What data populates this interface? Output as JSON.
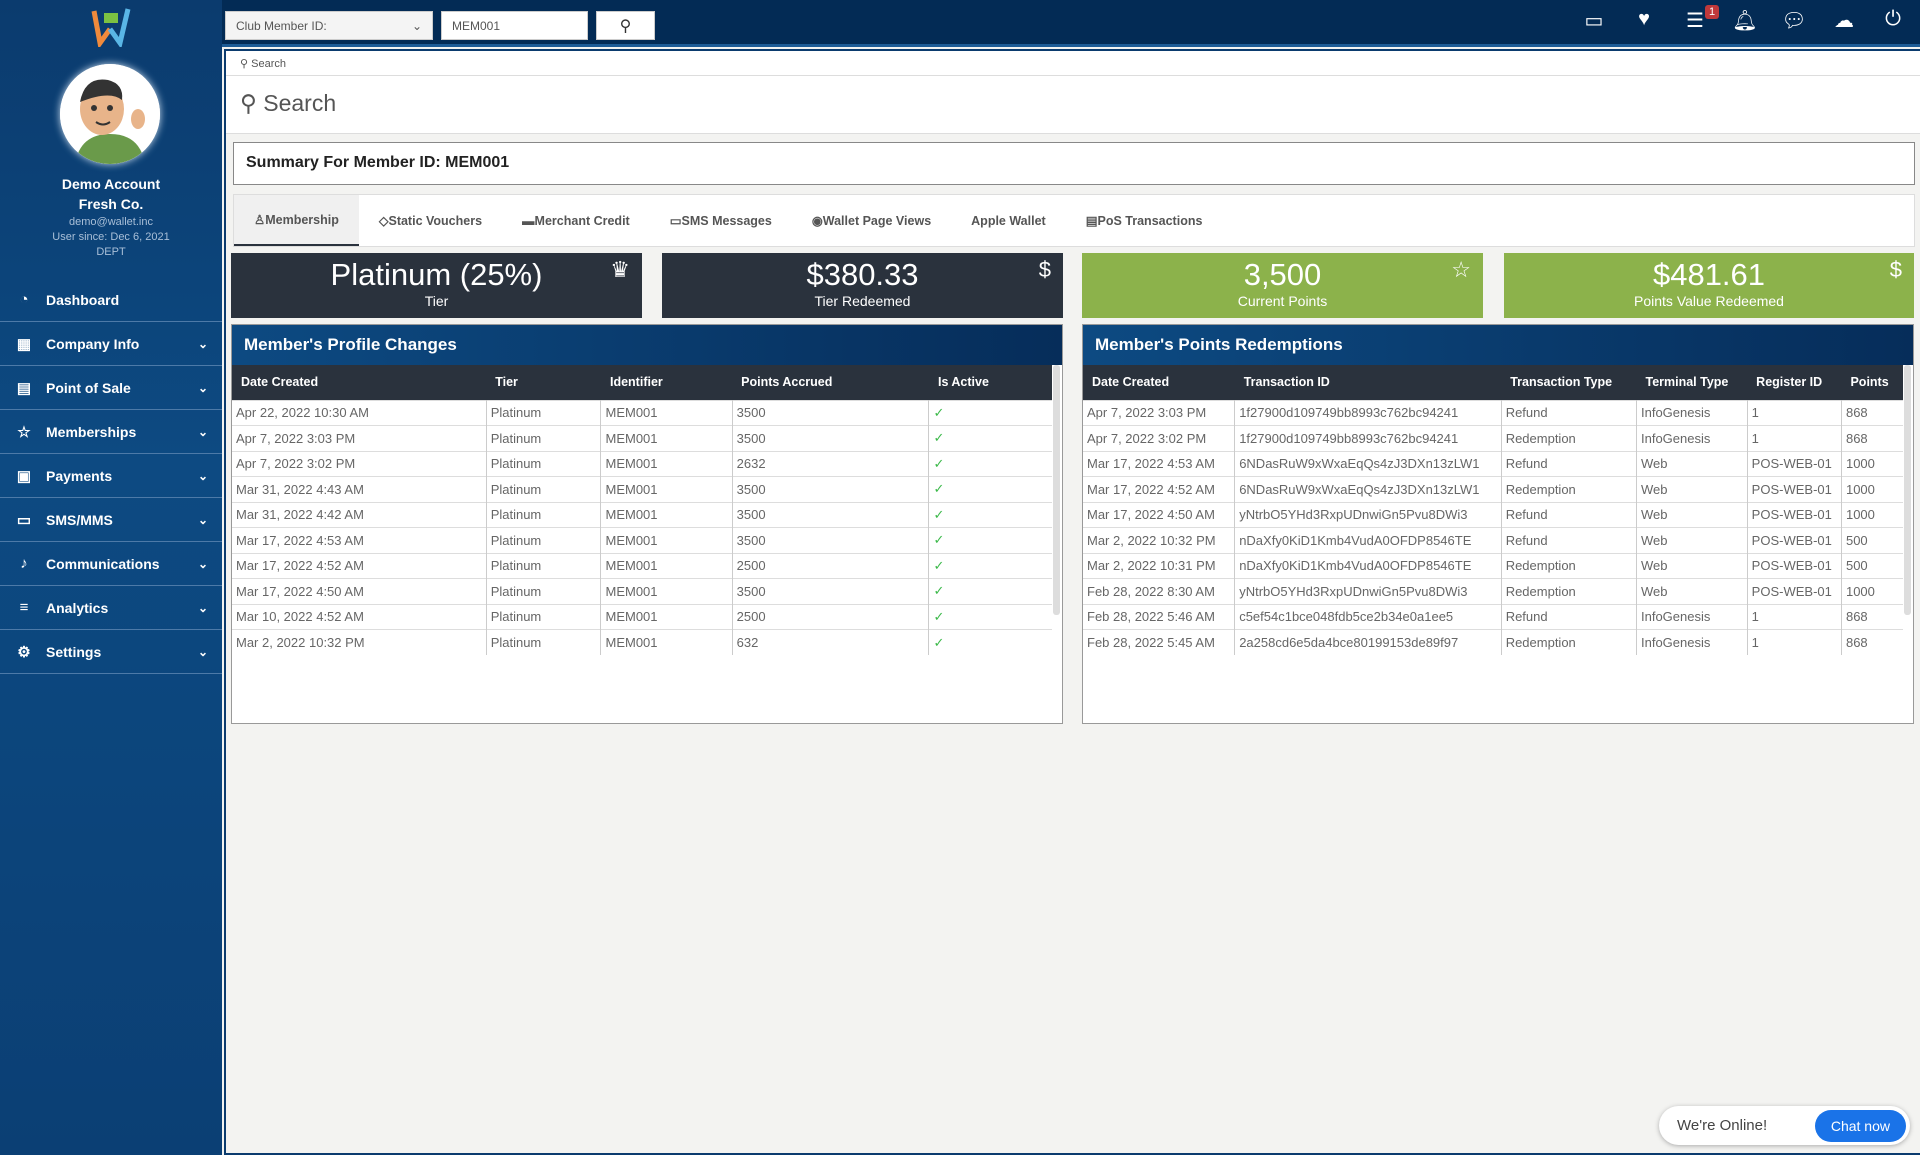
{
  "user": {
    "name": "Demo Account",
    "company": "Fresh Co.",
    "email": "demo@wallet.inc",
    "since": "User since: Dec 6, 2021",
    "dept": "DEPT"
  },
  "nav": [
    {
      "label": "Dashboard",
      "icon": "dashboard-icon",
      "g": "◔"
    },
    {
      "label": "Company Info",
      "icon": "building-icon",
      "g": "▦"
    },
    {
      "label": "Point of Sale",
      "icon": "register-icon",
      "g": "▤"
    },
    {
      "label": "Memberships",
      "icon": "star-icon",
      "g": "☆"
    },
    {
      "label": "Payments",
      "icon": "money-icon",
      "g": "▣"
    },
    {
      "label": "SMS/MMS",
      "icon": "chat-icon",
      "g": "▭"
    },
    {
      "label": "Communications",
      "icon": "microphone-icon",
      "g": "♪"
    },
    {
      "label": "Analytics",
      "icon": "chart-icon",
      "g": "≡"
    },
    {
      "label": "Settings",
      "icon": "users-gear-icon",
      "g": "⚙"
    }
  ],
  "topbar": {
    "select_value": "Club Member ID:",
    "search_value": "MEM001",
    "notification_count": "1",
    "icons": [
      "video-icon",
      "donate-icon",
      "tasks-icon",
      "bell-icon",
      "comments-icon",
      "cloud-download-icon",
      "power-icon"
    ]
  },
  "main": {
    "small_search": "Search",
    "title": "Search",
    "summary": "Summary For Member ID: MEM001",
    "tabs": [
      {
        "label": "Membership",
        "icon": "user-icon",
        "g": "♙"
      },
      {
        "label": "Static Vouchers",
        "icon": "tag-icon",
        "g": "◇"
      },
      {
        "label": "Merchant Credit",
        "icon": "credit-card-icon",
        "g": "▬"
      },
      {
        "label": "SMS Messages",
        "icon": "message-icon",
        "g": "▭"
      },
      {
        "label": "Wallet Page Views",
        "icon": "eye-icon",
        "g": "◉"
      },
      {
        "label": "Apple Wallet",
        "icon": "apple-icon",
        "g": ""
      },
      {
        "label": "PoS Transactions",
        "icon": "printer-icon",
        "g": "▤"
      }
    ],
    "cards": [
      {
        "value": "Platinum (25%)",
        "label": "Tier",
        "icon": "crown-icon",
        "g": "♛",
        "color": "#2a323d"
      },
      {
        "value": "$380.33",
        "label": "Tier Redeemed",
        "icon": "dollar-icon",
        "g": "$",
        "color": "#2a323d"
      },
      {
        "value": "3,500",
        "label": "Current Points",
        "icon": "star-icon",
        "g": "☆",
        "color": "#8cb24b"
      },
      {
        "value": "$481.61",
        "label": "Points Value Redeemed",
        "icon": "dollar-icon",
        "g": "$",
        "color": "#8cb24b"
      }
    ]
  },
  "profile": {
    "title": "Member's Profile Changes",
    "columns": [
      "Date Created",
      "Tier",
      "Identifier",
      "Points Accrued",
      "Is Active"
    ],
    "rows": [
      [
        "Apr 22, 2022 10:30 AM",
        "Platinum",
        "MEM001",
        "3500",
        "✓"
      ],
      [
        "Apr 7, 2022 3:03 PM",
        "Platinum",
        "MEM001",
        "3500",
        "✓"
      ],
      [
        "Apr 7, 2022 3:02 PM",
        "Platinum",
        "MEM001",
        "2632",
        "✓"
      ],
      [
        "Mar 31, 2022 4:43 AM",
        "Platinum",
        "MEM001",
        "3500",
        "✓"
      ],
      [
        "Mar 31, 2022 4:42 AM",
        "Platinum",
        "MEM001",
        "3500",
        "✓"
      ],
      [
        "Mar 17, 2022 4:53 AM",
        "Platinum",
        "MEM001",
        "3500",
        "✓"
      ],
      [
        "Mar 17, 2022 4:52 AM",
        "Platinum",
        "MEM001",
        "2500",
        "✓"
      ],
      [
        "Mar 17, 2022 4:50 AM",
        "Platinum",
        "MEM001",
        "3500",
        "✓"
      ],
      [
        "Mar 10, 2022 4:52 AM",
        "Platinum",
        "MEM001",
        "2500",
        "✓"
      ],
      [
        "Mar 2, 2022 10:32 PM",
        "Platinum",
        "MEM001",
        "632",
        "✓"
      ]
    ]
  },
  "redemptions": {
    "title": "Member's Points Redemptions",
    "columns": [
      "Date Created",
      "Transaction ID",
      "Transaction Type",
      "Terminal Type",
      "Register ID",
      "Points"
    ],
    "rows": [
      [
        "Apr 7, 2022 3:03 PM",
        "1f27900d109749bb8993c762bc94241",
        "Refund",
        "InfoGenesis",
        "1",
        "868"
      ],
      [
        "Apr 7, 2022 3:02 PM",
        "1f27900d109749bb8993c762bc94241",
        "Redemption",
        "InfoGenesis",
        "1",
        "868"
      ],
      [
        "Mar 17, 2022 4:53 AM",
        "6NDasRuW9xWxaEqQs4zJ3DXn13zLW1",
        "Refund",
        "Web",
        "POS-WEB-01",
        "1000"
      ],
      [
        "Mar 17, 2022 4:52 AM",
        "6NDasRuW9xWxaEqQs4zJ3DXn13zLW1",
        "Redemption",
        "Web",
        "POS-WEB-01",
        "1000"
      ],
      [
        "Mar 17, 2022 4:50 AM",
        "yNtrbO5YHd3RxpUDnwiGn5Pvu8DWi3",
        "Refund",
        "Web",
        "POS-WEB-01",
        "1000"
      ],
      [
        "Mar 2, 2022 10:32 PM",
        "nDaXfy0KiD1Kmb4VudA0OFDP8546TE",
        "Refund",
        "Web",
        "POS-WEB-01",
        "500"
      ],
      [
        "Mar 2, 2022 10:31 PM",
        "nDaXfy0KiD1Kmb4VudA0OFDP8546TE",
        "Redemption",
        "Web",
        "POS-WEB-01",
        "500"
      ],
      [
        "Feb 28, 2022 8:30 AM",
        "yNtrbO5YHd3RxpUDnwiGn5Pvu8DWi3",
        "Redemption",
        "Web",
        "POS-WEB-01",
        "1000"
      ],
      [
        "Feb 28, 2022 5:46 AM",
        "c5ef54c1bce048fdb5ce2b34e0a1ee5",
        "Refund",
        "InfoGenesis",
        "1",
        "868"
      ],
      [
        "Feb 28, 2022 5:45 AM",
        "2a258cd6e5da4bce80199153de89f97",
        "Redemption",
        "InfoGenesis",
        "1",
        "868"
      ]
    ]
  },
  "chat": {
    "status": "We're Online!",
    "button": "Chat now"
  }
}
